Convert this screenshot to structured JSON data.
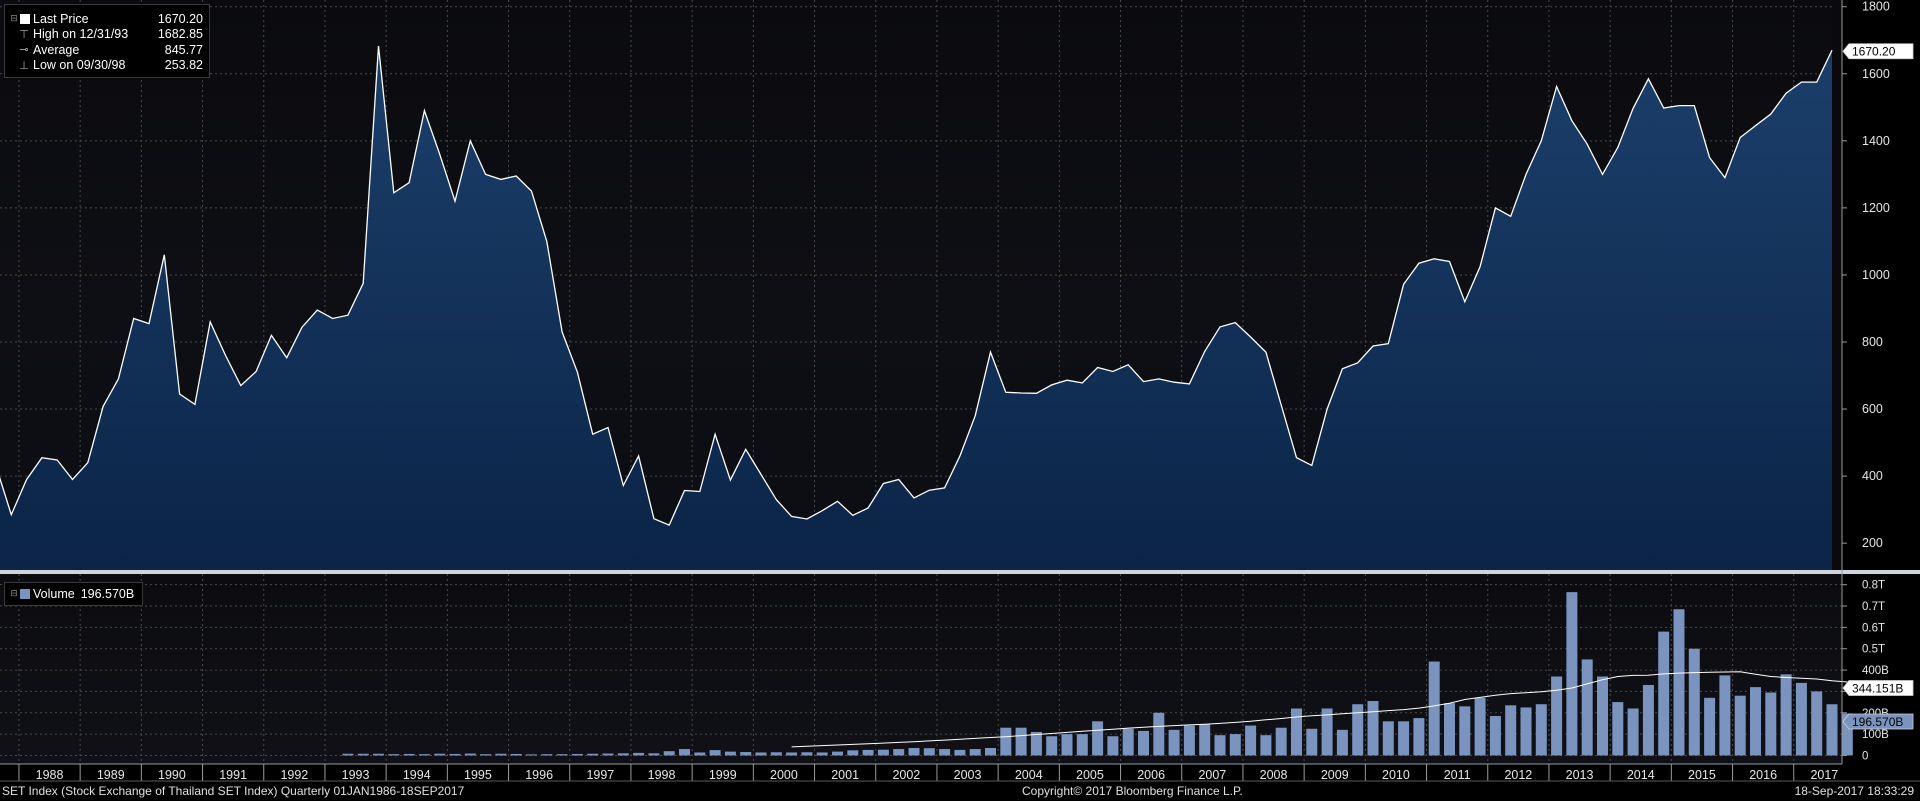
{
  "colors": {
    "background": "#000000",
    "plot_background_top": "#0a0a0e",
    "area_fill": "#143660",
    "price_line": "#ffffff",
    "volume_bar": "#7a93bf",
    "grid": "#4a4a4a",
    "panel_separator": "#cfd4dc"
  },
  "legend_top": {
    "items": [
      {
        "label": "Last Price",
        "value": "1670.20",
        "symbol": "square-swatch-icon"
      },
      {
        "label": "High on 12/31/93",
        "value": "1682.85",
        "symbol": "high-marker-icon"
      },
      {
        "label": "Average",
        "value": "845.77",
        "symbol": "average-marker-icon"
      },
      {
        "label": "Low on 09/30/98",
        "value": "253.82",
        "symbol": "low-marker-icon"
      }
    ]
  },
  "legend_bottom": {
    "label": "Volume",
    "value": "196.570B"
  },
  "footer": {
    "left": "SET Index (Stock Exchange of Thailand SET Index)  Quarterly 01JAN1986-18SEP2017",
    "center": "Copyright© 2017 Bloomberg Finance L.P.",
    "right": "18-Sep-2017 18:33:29"
  },
  "chart_data": [
    {
      "type": "area",
      "x_start": "1987 Q3",
      "frequency": "quarterly",
      "ylim": [
        120,
        1820
      ],
      "yticks": [
        200,
        400,
        600,
        800,
        1000,
        1200,
        1400,
        1600,
        1800
      ],
      "last_value_label": "1670.20",
      "grid": true,
      "series": [
        {
          "name": "Last Price",
          "values": [
            430,
            285,
            390,
            455,
            448,
            390,
            440,
            608,
            690,
            870,
            855,
            1060,
            645,
            614,
            860,
            760,
            670,
            712,
            820,
            753,
            844,
            895,
            870,
            880,
            975,
            1682.85,
            1245,
            1275,
            1490,
            1360,
            1220,
            1400,
            1300,
            1285,
            1295,
            1250,
            1100,
            830,
            710,
            525,
            545,
            372,
            460,
            273,
            253.82,
            357,
            354,
            525,
            388,
            480,
            405,
            330,
            280,
            272,
            297,
            325,
            283,
            305,
            378,
            390,
            335,
            358,
            365,
            460,
            580,
            770,
            650,
            648,
            647,
            672,
            686,
            678,
            724,
            712,
            732,
            682,
            690,
            680,
            675,
            772,
            845,
            858,
            815,
            770,
            612,
            455,
            432,
            600,
            720,
            738,
            788,
            795,
            972,
            1035,
            1048,
            1040,
            920,
            1025,
            1200,
            1175,
            1300,
            1400,
            1562,
            1460,
            1390,
            1300,
            1380,
            1497,
            1585,
            1498,
            1505,
            1505,
            1350,
            1290,
            1410,
            1445,
            1480,
            1542,
            1575,
            1575,
            1670.2
          ]
        }
      ]
    },
    {
      "type": "bar",
      "x_start": "1993 Q2",
      "frequency": "quarterly",
      "ylim": [
        -40,
        850
      ],
      "y_unit": "B",
      "yticks": [
        "0",
        "100B",
        "200B",
        "300B",
        "400B",
        "0.5T",
        "0.6T",
        "0.7T",
        "0.8T"
      ],
      "last_value_label": "196.570B",
      "moving_average_label": "344.151B",
      "grid": true,
      "series": [
        {
          "name": "Volume",
          "values": [
            8,
            8,
            8,
            6,
            7,
            6,
            8,
            7,
            9,
            6,
            8,
            7,
            5,
            6,
            6,
            7,
            8,
            9,
            10,
            12,
            10,
            20,
            30,
            14,
            25,
            18,
            16,
            14,
            15,
            14,
            15,
            14,
            18,
            24,
            26,
            27,
            30,
            35,
            34,
            30,
            26,
            30,
            35,
            130,
            130,
            110,
            90,
            100,
            100,
            160,
            90,
            125,
            115,
            200,
            120,
            140,
            145,
            95,
            100,
            140,
            95,
            130,
            220,
            125,
            220,
            120,
            240,
            255,
            160,
            160,
            175,
            440,
            245,
            230,
            270,
            185,
            235,
            225,
            240,
            370,
            765,
            450,
            370,
            250,
            220,
            330,
            580,
            685,
            500,
            270,
            375,
            280,
            320,
            295,
            380,
            340,
            300,
            240,
            196.57
          ]
        },
        {
          "values": [
            40,
            43,
            46,
            49,
            52,
            55,
            58,
            61,
            64,
            68,
            72,
            76,
            80,
            84,
            88,
            93,
            98,
            103,
            108,
            113,
            118,
            123,
            128,
            132,
            136,
            140,
            143,
            146,
            150,
            155,
            160,
            167,
            173,
            180,
            186,
            190,
            195,
            200,
            205,
            210,
            215,
            222,
            232,
            245,
            262,
            272,
            282,
            290,
            294,
            298,
            305,
            316,
            335,
            355,
            370,
            375,
            376,
            382,
            386,
            388,
            390,
            391,
            392,
            380,
            370,
            365,
            362,
            358,
            350,
            344.151
          ]
        }
      ]
    }
  ],
  "x_axis": {
    "labels": [
      "1988",
      "1989",
      "1990",
      "1991",
      "1992",
      "1993",
      "1994",
      "1995",
      "1996",
      "1997",
      "1998",
      "1999",
      "2000",
      "2001",
      "2002",
      "2003",
      "2004",
      "2005",
      "2006",
      "2007",
      "2008",
      "2009",
      "2010",
      "2011",
      "2012",
      "2013",
      "2014",
      "2015",
      "2016",
      "2017"
    ]
  }
}
